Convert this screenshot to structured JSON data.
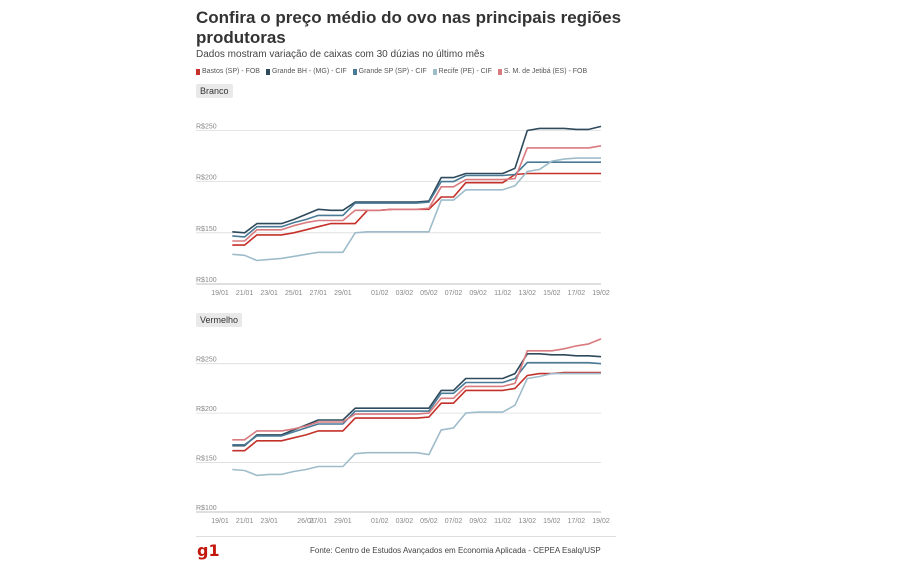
{
  "header": {
    "title": "Confira o preço médio do ovo nas principais regiões produtoras",
    "subtitle": "Dados mostram variação de caixas com 30 dúzias no último mês"
  },
  "colors": {
    "bastos": "#c4312a",
    "bh": "#2e4a5c",
    "sp": "#4a7a96",
    "recife": "#9fbccb",
    "jetiba": "#d97a7f"
  },
  "legend": [
    {
      "label": "Bastos (SP) - FOB",
      "color": "#c4312a"
    },
    {
      "label": "Grande BH - (MG) - CIF",
      "color": "#2e4a5c"
    },
    {
      "label": "Grande SP (SP) - CIF",
      "color": "#4a7a96"
    },
    {
      "label": "Recife (PE) - CIF",
      "color": "#9fbccb"
    },
    {
      "label": "S. M. de Jetibá (ES) - FOB",
      "color": "#d97a7f"
    }
  ],
  "chart_data": [
    {
      "type": "line",
      "panel": "Branco",
      "x": [
        "19/01",
        "20/01",
        "21/01",
        "22/01",
        "23/01",
        "24/01",
        "25/01",
        "26/01",
        "27/01",
        "28/01",
        "29/01",
        "30/01",
        "31/01",
        "01/02",
        "02/02",
        "03/02",
        "04/02",
        "05/02",
        "06/02",
        "07/02",
        "08/02",
        "09/02",
        "10/02",
        "11/02",
        "12/02",
        "13/02",
        "14/02",
        "15/02",
        "16/02",
        "17/02",
        "18/02",
        "19/02"
      ],
      "xticks": [
        "19/01",
        "21/01",
        "23/01",
        "25/01",
        "27/01",
        "29/01",
        "01/02",
        "03/02",
        "05/02",
        "07/02",
        "09/02",
        "11/02",
        "13/02",
        "15/02",
        "17/02",
        "19/02"
      ],
      "yticks": [
        "R$100",
        "R$150",
        "R$200",
        "R$250"
      ],
      "ylim": [
        100,
        270
      ],
      "series": [
        {
          "name": "Bastos (SP) - FOB",
          "color": "#c4312a",
          "values": [
            null,
            138,
            138,
            148,
            148,
            148,
            150,
            153,
            156,
            159,
            159,
            159,
            172,
            172,
            173,
            173,
            173,
            173,
            185,
            185,
            199,
            199,
            199,
            199,
            207,
            208,
            208,
            208,
            208,
            208,
            208,
            208
          ]
        },
        {
          "name": "Grande BH - (MG) - CIF",
          "color": "#2e4a5c",
          "values": [
            null,
            151,
            150,
            159,
            159,
            159,
            163,
            168,
            173,
            172,
            172,
            180,
            180,
            180,
            180,
            180,
            180,
            181,
            204,
            204,
            208,
            208,
            208,
            208,
            213,
            250,
            252,
            252,
            252,
            251,
            251,
            254
          ]
        },
        {
          "name": "Grande SP (SP) - CIF",
          "color": "#4a7a96",
          "values": [
            null,
            147,
            146,
            156,
            156,
            156,
            160,
            163,
            167,
            167,
            167,
            179,
            179,
            179,
            179,
            179,
            179,
            180,
            200,
            200,
            206,
            206,
            206,
            206,
            207,
            219,
            219,
            219,
            219,
            219,
            219,
            219
          ]
        },
        {
          "name": "Recife (PE) - CIF",
          "color": "#9fbccb",
          "values": [
            null,
            129,
            128,
            123,
            124,
            125,
            127,
            129,
            131,
            131,
            131,
            150,
            151,
            151,
            151,
            151,
            151,
            151,
            182,
            182,
            192,
            192,
            192,
            192,
            196,
            210,
            212,
            220,
            222,
            223,
            223,
            223
          ]
        },
        {
          "name": "S. M. de Jetibá (ES) - FOB",
          "color": "#d97a7f",
          "values": [
            null,
            142,
            142,
            153,
            153,
            153,
            157,
            160,
            162,
            162,
            162,
            172,
            172,
            172,
            173,
            173,
            173,
            174,
            195,
            195,
            202,
            202,
            202,
            202,
            203,
            233,
            233,
            233,
            233,
            233,
            233,
            235
          ]
        }
      ]
    },
    {
      "type": "line",
      "panel": "Vermelho",
      "x": [
        "19/01",
        "20/01",
        "21/01",
        "22/01",
        "23/01",
        "24/01",
        "25/01",
        "26/01",
        "27/01",
        "28/01",
        "29/01",
        "30/01",
        "31/01",
        "01/02",
        "02/02",
        "03/02",
        "04/02",
        "05/02",
        "06/02",
        "07/02",
        "08/02",
        "09/02",
        "10/02",
        "11/02",
        "12/02",
        "13/02",
        "14/02",
        "15/02",
        "16/02",
        "17/02",
        "18/02",
        "19/02"
      ],
      "xticks": [
        "19/01",
        "21/01",
        "23/01",
        "26/01",
        "27/01",
        "29/01",
        "01/02",
        "03/02",
        "05/02",
        "07/02",
        "09/02",
        "11/02",
        "13/02",
        "15/02",
        "17/02",
        "19/02"
      ],
      "yticks": [
        "R$100",
        "R$150",
        "R$200",
        "R$250"
      ],
      "ylim": [
        100,
        280
      ],
      "series": [
        {
          "name": "Bastos (SP) - FOB",
          "color": "#c4312a",
          "values": [
            null,
            162,
            162,
            172,
            172,
            172,
            175,
            178,
            182,
            182,
            182,
            195,
            195,
            195,
            195,
            195,
            195,
            196,
            210,
            210,
            223,
            223,
            223,
            223,
            225,
            238,
            240,
            240,
            241,
            241,
            241,
            241
          ]
        },
        {
          "name": "Grande BH - (MG) - CIF",
          "color": "#2e4a5c",
          "values": [
            null,
            167,
            167,
            178,
            178,
            178,
            183,
            188,
            193,
            193,
            193,
            205,
            205,
            205,
            205,
            205,
            205,
            205,
            223,
            223,
            235,
            235,
            235,
            235,
            240,
            260,
            260,
            259,
            259,
            258,
            258,
            257
          ]
        },
        {
          "name": "Grande SP (SP) - CIF",
          "color": "#4a7a96",
          "values": [
            null,
            168,
            168,
            177,
            177,
            177,
            181,
            185,
            189,
            189,
            189,
            202,
            202,
            202,
            202,
            202,
            202,
            202,
            220,
            220,
            231,
            231,
            231,
            231,
            235,
            251,
            251,
            251,
            251,
            251,
            251,
            250
          ]
        },
        {
          "name": "Recife (PE) - CIF",
          "color": "#9fbccb",
          "values": [
            null,
            143,
            142,
            137,
            138,
            138,
            141,
            143,
            146,
            146,
            146,
            159,
            160,
            160,
            160,
            160,
            160,
            158,
            183,
            185,
            200,
            201,
            201,
            201,
            208,
            235,
            237,
            240,
            240,
            240,
            240,
            240
          ]
        },
        {
          "name": "S. M. de Jetibá (ES) - FOB",
          "color": "#d97a7f",
          "values": [
            null,
            173,
            173,
            182,
            182,
            182,
            184,
            187,
            191,
            191,
            191,
            199,
            199,
            199,
            199,
            199,
            199,
            200,
            215,
            215,
            227,
            227,
            227,
            227,
            230,
            263,
            263,
            263,
            265,
            268,
            270,
            275
          ]
        }
      ]
    }
  ],
  "footer": {
    "logo": "g1",
    "source": "Fonte: Centro de Estudos Avançados em Economia Aplicada - CEPEA Esalq/USP"
  }
}
